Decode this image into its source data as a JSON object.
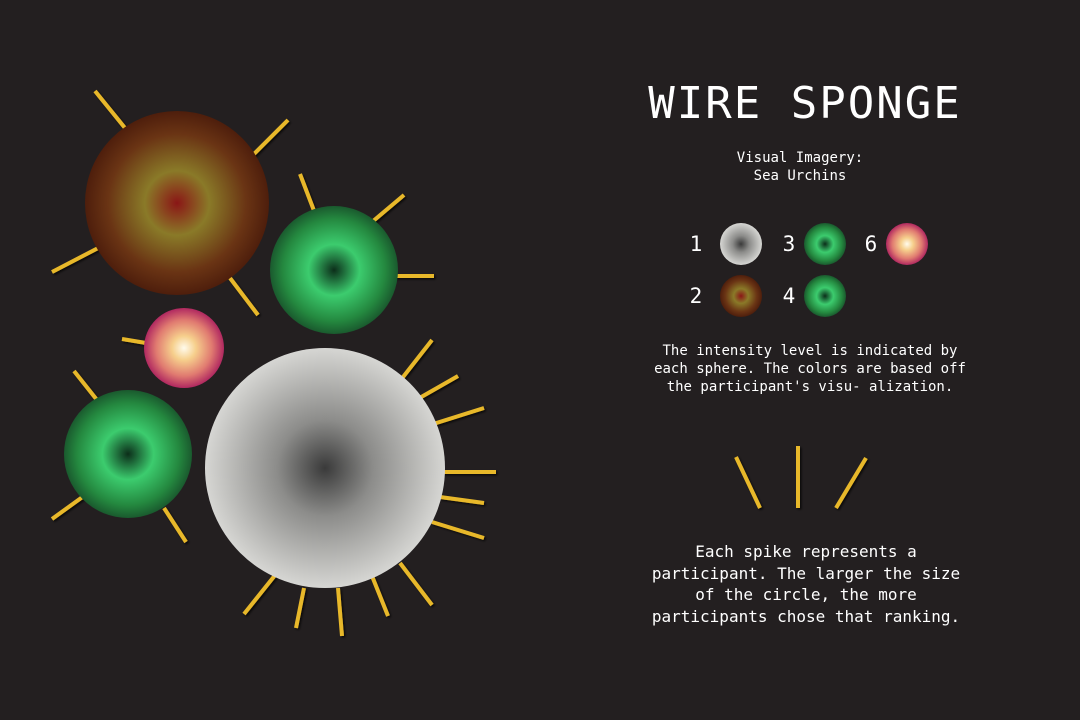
{
  "title": "WIRE SPONGE",
  "subtitle": {
    "line1": "Visual Imagery:",
    "line2": "Sea Urchins"
  },
  "legend": [
    {
      "rank": "1",
      "color_name": "gray"
    },
    {
      "rank": "2",
      "color_name": "brown"
    },
    {
      "rank": "3",
      "color_name": "green"
    },
    {
      "rank": "4",
      "color_name": "green"
    },
    {
      "rank": "6",
      "color_name": "pink"
    }
  ],
  "intensity_text": "The intensity level is indicated by each sphere. The colors are based off the participant's visu- alization.",
  "spike_text": "Each spike represents a participant. The larger the size of the circle, the more participants chose that ranking.",
  "colors": {
    "background": "#231f20",
    "spike": "#e8b82a",
    "gray_center": "#3c3c3c",
    "gray_outer": "#d2d2cf",
    "brown_center": "#8a1818",
    "brown_mid": "#8a7020",
    "brown_outer": "#5c2a10",
    "green_center": "#0e3820",
    "green_mid": "#36c86a",
    "green_outer": "#1c6634",
    "pink_center": "#fff6dc",
    "pink_mid": "#f4b870",
    "pink_outer": "#b83068"
  }
}
